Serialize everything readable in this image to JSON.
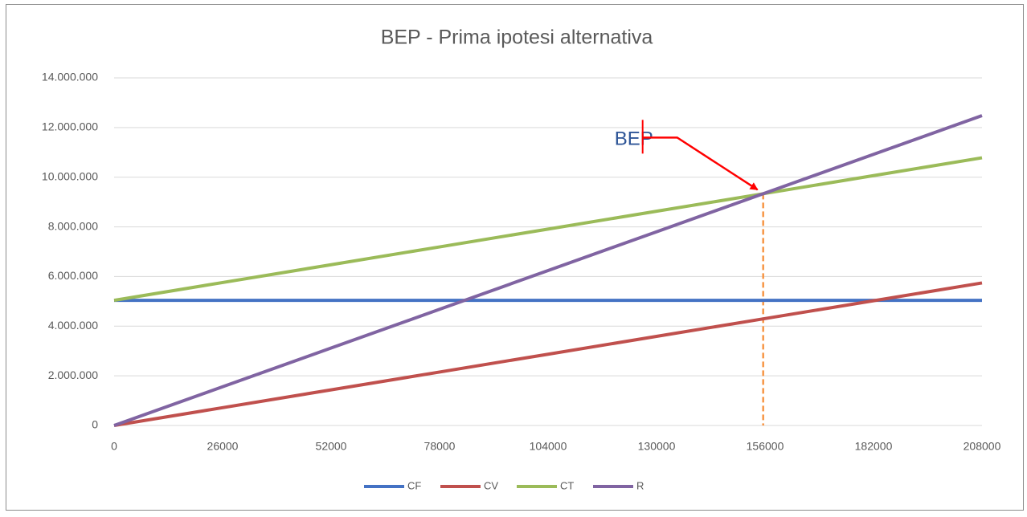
{
  "chart_data": {
    "type": "line",
    "title": "BEP - Prima ipotesi alternativa",
    "x": [
      0,
      26000,
      52000,
      78000,
      104000,
      130000,
      156000,
      182000,
      208000
    ],
    "xlim": [
      0,
      208000
    ],
    "xticks": [
      0,
      26000,
      52000,
      78000,
      104000,
      130000,
      156000,
      182000,
      208000
    ],
    "ylim": [
      0,
      14000000
    ],
    "yticks": [
      0,
      {
        "value": 2000000,
        "label": "2.000.000"
      },
      {
        "value": 4000000,
        "label": "4.000.000"
      },
      {
        "value": 6000000,
        "label": "6.000.000"
      },
      {
        "value": 8000000,
        "label": "8.000.000"
      },
      {
        "value": 10000000,
        "label": "10.000.000"
      },
      {
        "value": 12000000,
        "label": "12.000.000"
      },
      {
        "value": 14000000,
        "label": "14.000.000"
      }
    ],
    "grid": true,
    "legend": "bottom",
    "series": [
      {
        "name": "CF",
        "color": "#4472c4",
        "values": [
          5040000,
          5040000,
          5040000,
          5040000,
          5040000,
          5040000,
          5040000,
          5040000,
          5040000
        ]
      },
      {
        "name": "CV",
        "color": "#c0504d",
        "values": [
          0,
          717600,
          1435200,
          2152800,
          2870400,
          3588000,
          4305600,
          5023200,
          5740800
        ]
      },
      {
        "name": "CT",
        "color": "#9bbb59",
        "values": [
          5040000,
          5757600,
          6475200,
          7192800,
          7910400,
          8628000,
          9345600,
          10063200,
          10780800
        ]
      },
      {
        "name": "R",
        "color": "#8064a2",
        "values": [
          0,
          1560000,
          3120000,
          4680000,
          6240000,
          7800000,
          9360000,
          10920000,
          12480000
        ]
      }
    ],
    "annotation": {
      "text": "BEP",
      "x": 155556,
      "y": 9333333
    }
  }
}
